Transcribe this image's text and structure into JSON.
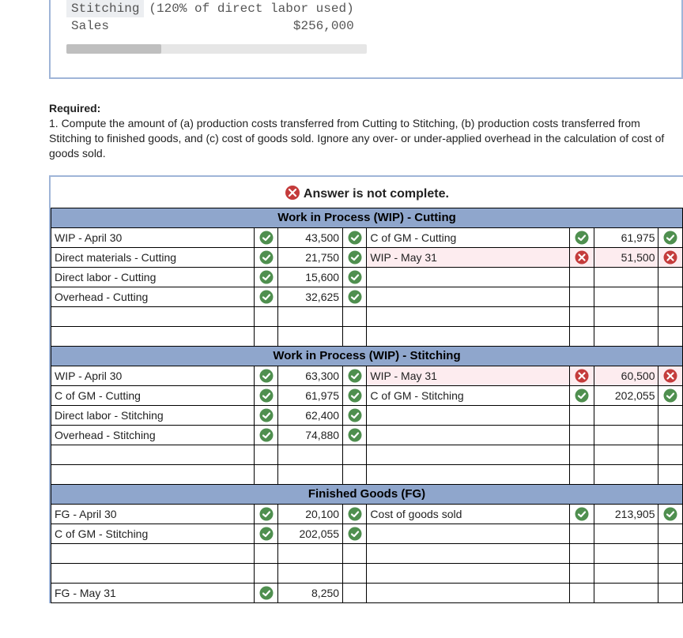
{
  "top": {
    "rows": [
      {
        "label": "Stitching",
        "value": "(120% of direct labor used)",
        "shade": true
      },
      {
        "label": "Sales",
        "value": "$256,000",
        "shade": false
      }
    ]
  },
  "required": {
    "heading": "Required:",
    "text": "1. Compute the amount of (a) production costs transferred from Cutting to Stitching, (b) production costs transferred from Stitching to finished goods, and (c) cost of goods sold. Ignore any over- or under-applied overhead in the calculation of cost of goods sold."
  },
  "banner": "Answer is not complete.",
  "icon_colors": {
    "check": "#4f8f4f",
    "cross": "#c43b3b"
  },
  "table_header_bg": "#8fa6cc",
  "sections": [
    {
      "title": "Work in Process (WIP) - Cutting",
      "left": [
        {
          "label": "WIP - April 30",
          "mark": "check",
          "value": "43,500",
          "vmark": "check"
        },
        {
          "label": "Direct materials - Cutting",
          "mark": "check",
          "value": "21,750",
          "vmark": "check"
        },
        {
          "label": "Direct labor - Cutting",
          "mark": "check",
          "value": "15,600",
          "vmark": "check"
        },
        {
          "label": "Overhead - Cutting",
          "mark": "check",
          "value": "32,625",
          "vmark": "check"
        },
        {
          "label": "",
          "mark": "",
          "value": "",
          "vmark": ""
        }
      ],
      "right": [
        {
          "label": "C of GM - Cutting",
          "mark": "check",
          "value": "61,975",
          "vmark": "check",
          "pink": false
        },
        {
          "label": "WIP - May 31",
          "mark": "cross",
          "value": "51,500",
          "vmark": "cross",
          "pink": true
        },
        {
          "label": "",
          "mark": "",
          "value": "",
          "vmark": ""
        },
        {
          "label": "",
          "mark": "",
          "value": "",
          "vmark": ""
        },
        {
          "label": "",
          "mark": "",
          "value": "",
          "vmark": ""
        }
      ]
    },
    {
      "title": "Work in Process (WIP) - Stitching",
      "left": [
        {
          "label": "WIP - April 30",
          "mark": "check",
          "value": "63,300",
          "vmark": "check"
        },
        {
          "label": "C of GM - Cutting",
          "mark": "check",
          "value": "61,975",
          "vmark": "check"
        },
        {
          "label": "Direct labor - Stitching",
          "mark": "check",
          "value": "62,400",
          "vmark": "check"
        },
        {
          "label": "Overhead - Stitching",
          "mark": "check",
          "value": "74,880",
          "vmark": "check"
        },
        {
          "label": "",
          "mark": "",
          "value": "",
          "vmark": ""
        }
      ],
      "right": [
        {
          "label": "WIP - May 31",
          "mark": "cross",
          "value": "60,500",
          "vmark": "cross",
          "pink": true
        },
        {
          "label": "C of GM - Stitching",
          "mark": "check",
          "value": "202,055",
          "vmark": "check",
          "pink": false
        },
        {
          "label": "",
          "mark": "",
          "value": "",
          "vmark": ""
        },
        {
          "label": "",
          "mark": "",
          "value": "",
          "vmark": ""
        },
        {
          "label": "",
          "mark": "",
          "value": "",
          "vmark": ""
        }
      ]
    },
    {
      "title": "Finished Goods (FG)",
      "left": [
        {
          "label": "FG - April 30",
          "mark": "check",
          "value": "20,100",
          "vmark": "check"
        },
        {
          "label": "C of GM - Stitching",
          "mark": "check",
          "value": "202,055",
          "vmark": "check"
        },
        {
          "label": "",
          "mark": "",
          "value": "",
          "vmark": ""
        },
        {
          "label": "",
          "mark": "",
          "value": "",
          "vmark": ""
        },
        {
          "label": "FG - May 31",
          "mark": "check",
          "value": "8,250",
          "vmark": ""
        }
      ],
      "right": [
        {
          "label": "Cost of goods sold",
          "mark": "check",
          "value": "213,905",
          "vmark": "check"
        },
        {
          "label": "",
          "mark": "",
          "value": "",
          "vmark": ""
        },
        {
          "label": "",
          "mark": "",
          "value": "",
          "vmark": ""
        },
        {
          "label": "",
          "mark": "",
          "value": "",
          "vmark": ""
        },
        {
          "label": "",
          "mark": "",
          "value": "",
          "vmark": ""
        }
      ]
    }
  ]
}
